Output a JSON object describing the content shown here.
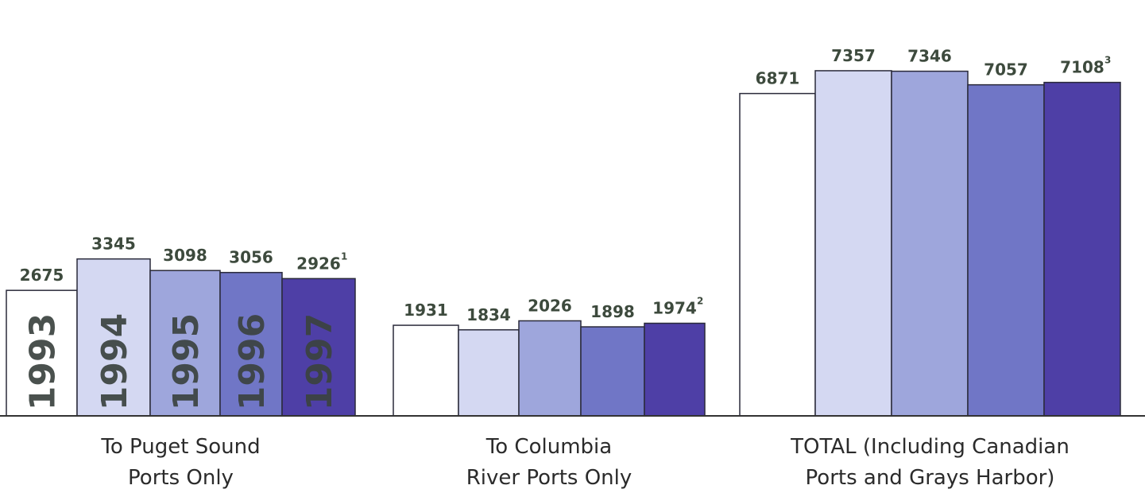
{
  "chart_data": {
    "type": "bar",
    "title": "",
    "xlabel": "",
    "ylabel": "",
    "ylim": [
      0,
      7800
    ],
    "grid": false,
    "legend": "year labels printed inside first group bars",
    "groups": [
      {
        "label_lines": [
          "To Puget Sound",
          "Ports Only"
        ],
        "values": [
          2675,
          3345,
          3098,
          3056,
          2926
        ],
        "value_labels": [
          "2675",
          "3345",
          "3098",
          "3056",
          "2926"
        ],
        "footnotes": [
          "",
          "",
          "",
          "",
          "1"
        ]
      },
      {
        "label_lines": [
          "To Columbia",
          "River Ports Only"
        ],
        "values": [
          1931,
          1834,
          2026,
          1898,
          1974
        ],
        "value_labels": [
          "1931",
          "1834",
          "2026",
          "1898",
          "1974"
        ],
        "footnotes": [
          "",
          "",
          "",
          "",
          "2"
        ]
      },
      {
        "label_lines": [
          "TOTAL (Including Canadian",
          "Ports and Grays Harbor)"
        ],
        "values": [
          6871,
          7357,
          7346,
          7057,
          7108
        ],
        "value_labels": [
          "6871",
          "7357",
          "7346",
          "7057",
          "7108"
        ],
        "footnotes": [
          "",
          "",
          "",
          "",
          "3"
        ]
      }
    ],
    "series": [
      {
        "name": "1993",
        "color": "#ffffff"
      },
      {
        "name": "1994",
        "color": "#d4d8f2"
      },
      {
        "name": "1995",
        "color": "#9ea6dc"
      },
      {
        "name": "1996",
        "color": "#7076c6"
      },
      {
        "name": "1997",
        "color": "#4e3fa6"
      }
    ]
  }
}
